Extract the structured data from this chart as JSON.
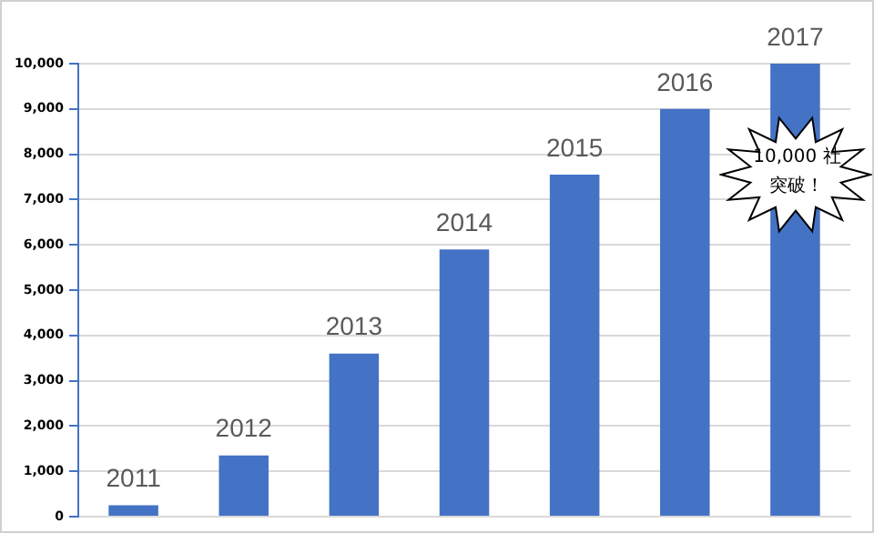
{
  "chart_data": {
    "type": "bar",
    "categories": [
      "2011",
      "2012",
      "2013",
      "2014",
      "2015",
      "2016",
      "2017"
    ],
    "values": [
      250,
      1350,
      3600,
      5900,
      7550,
      9000,
      10000
    ],
    "color": "#4472c4",
    "ylim": [
      0,
      10000
    ],
    "yticks": [
      {
        "value": 0,
        "label": "0"
      },
      {
        "value": 1000,
        "label": "1,000"
      },
      {
        "value": 2000,
        "label": "2,000"
      },
      {
        "value": 3000,
        "label": "3,000"
      },
      {
        "value": 4000,
        "label": "4,000"
      },
      {
        "value": 5000,
        "label": "5,000"
      },
      {
        "value": 6000,
        "label": "6,000"
      },
      {
        "value": 7000,
        "label": "7,000"
      },
      {
        "value": 8000,
        "label": "8,000"
      },
      {
        "value": 9000,
        "label": "9,000"
      },
      {
        "value": 10000,
        "label": "10,000"
      }
    ],
    "grid": "y",
    "annotations": [
      "10,000 社突破！"
    ]
  }
}
